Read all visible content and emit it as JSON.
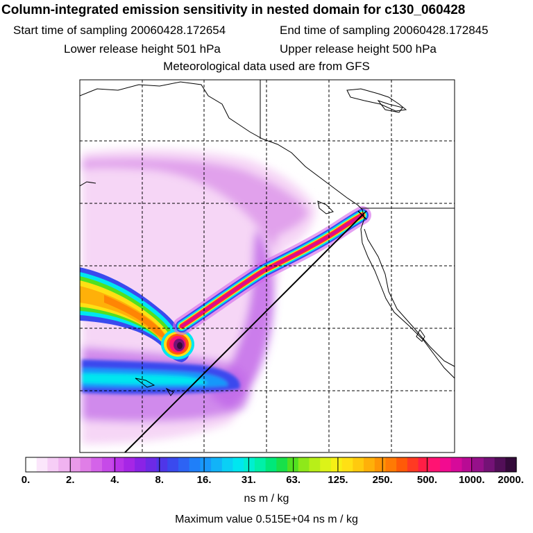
{
  "header": {
    "title": "Column-integrated emission sensitivity in nested domain for c130_060428",
    "start_label": "Start time of sampling 20060428.172654",
    "end_label": "End time of sampling 20060428.172845",
    "lower_label": "Lower release height  501 hPa",
    "upper_label": "Upper release height  500 hPa",
    "met_label": "Meteorological data used are from GFS"
  },
  "colorbar": {
    "ticks": [
      "0.",
      "2.",
      "4.",
      "8.",
      "16.",
      "31.",
      "63.",
      "125.",
      "250.",
      "500.",
      "1000.",
      "2000."
    ],
    "unit": "ns m / kg",
    "colors": [
      "#ffffff",
      "#fbe6fb",
      "#f6cdf6",
      "#f0b3f0",
      "#e99ae9",
      "#e07ee7",
      "#d463e9",
      "#c64ae8",
      "#b833e8",
      "#a626e6",
      "#8a23e6",
      "#6d2ae6",
      "#4f36e8",
      "#3a4aee",
      "#2d63f4",
      "#1f7ff9",
      "#1898fa",
      "#12b3f8",
      "#0ad0f5",
      "#00e6f0",
      "#00efd0",
      "#00f0a8",
      "#00e87a",
      "#18e04a",
      "#52e020",
      "#8ee81a",
      "#b8ef18",
      "#dcf318",
      "#f6f015",
      "#ffe014",
      "#ffca0e",
      "#ffb009",
      "#ff9505",
      "#ff7a04",
      "#ff5a08",
      "#ff3a22",
      "#ff1e45",
      "#ff1372",
      "#f20b90",
      "#d60a9a",
      "#b80b94",
      "#96108a",
      "#741276",
      "#520f58",
      "#340a3a"
    ]
  },
  "footer": {
    "max_label": "Maximum value  0.515E+04 ns m / kg"
  }
}
